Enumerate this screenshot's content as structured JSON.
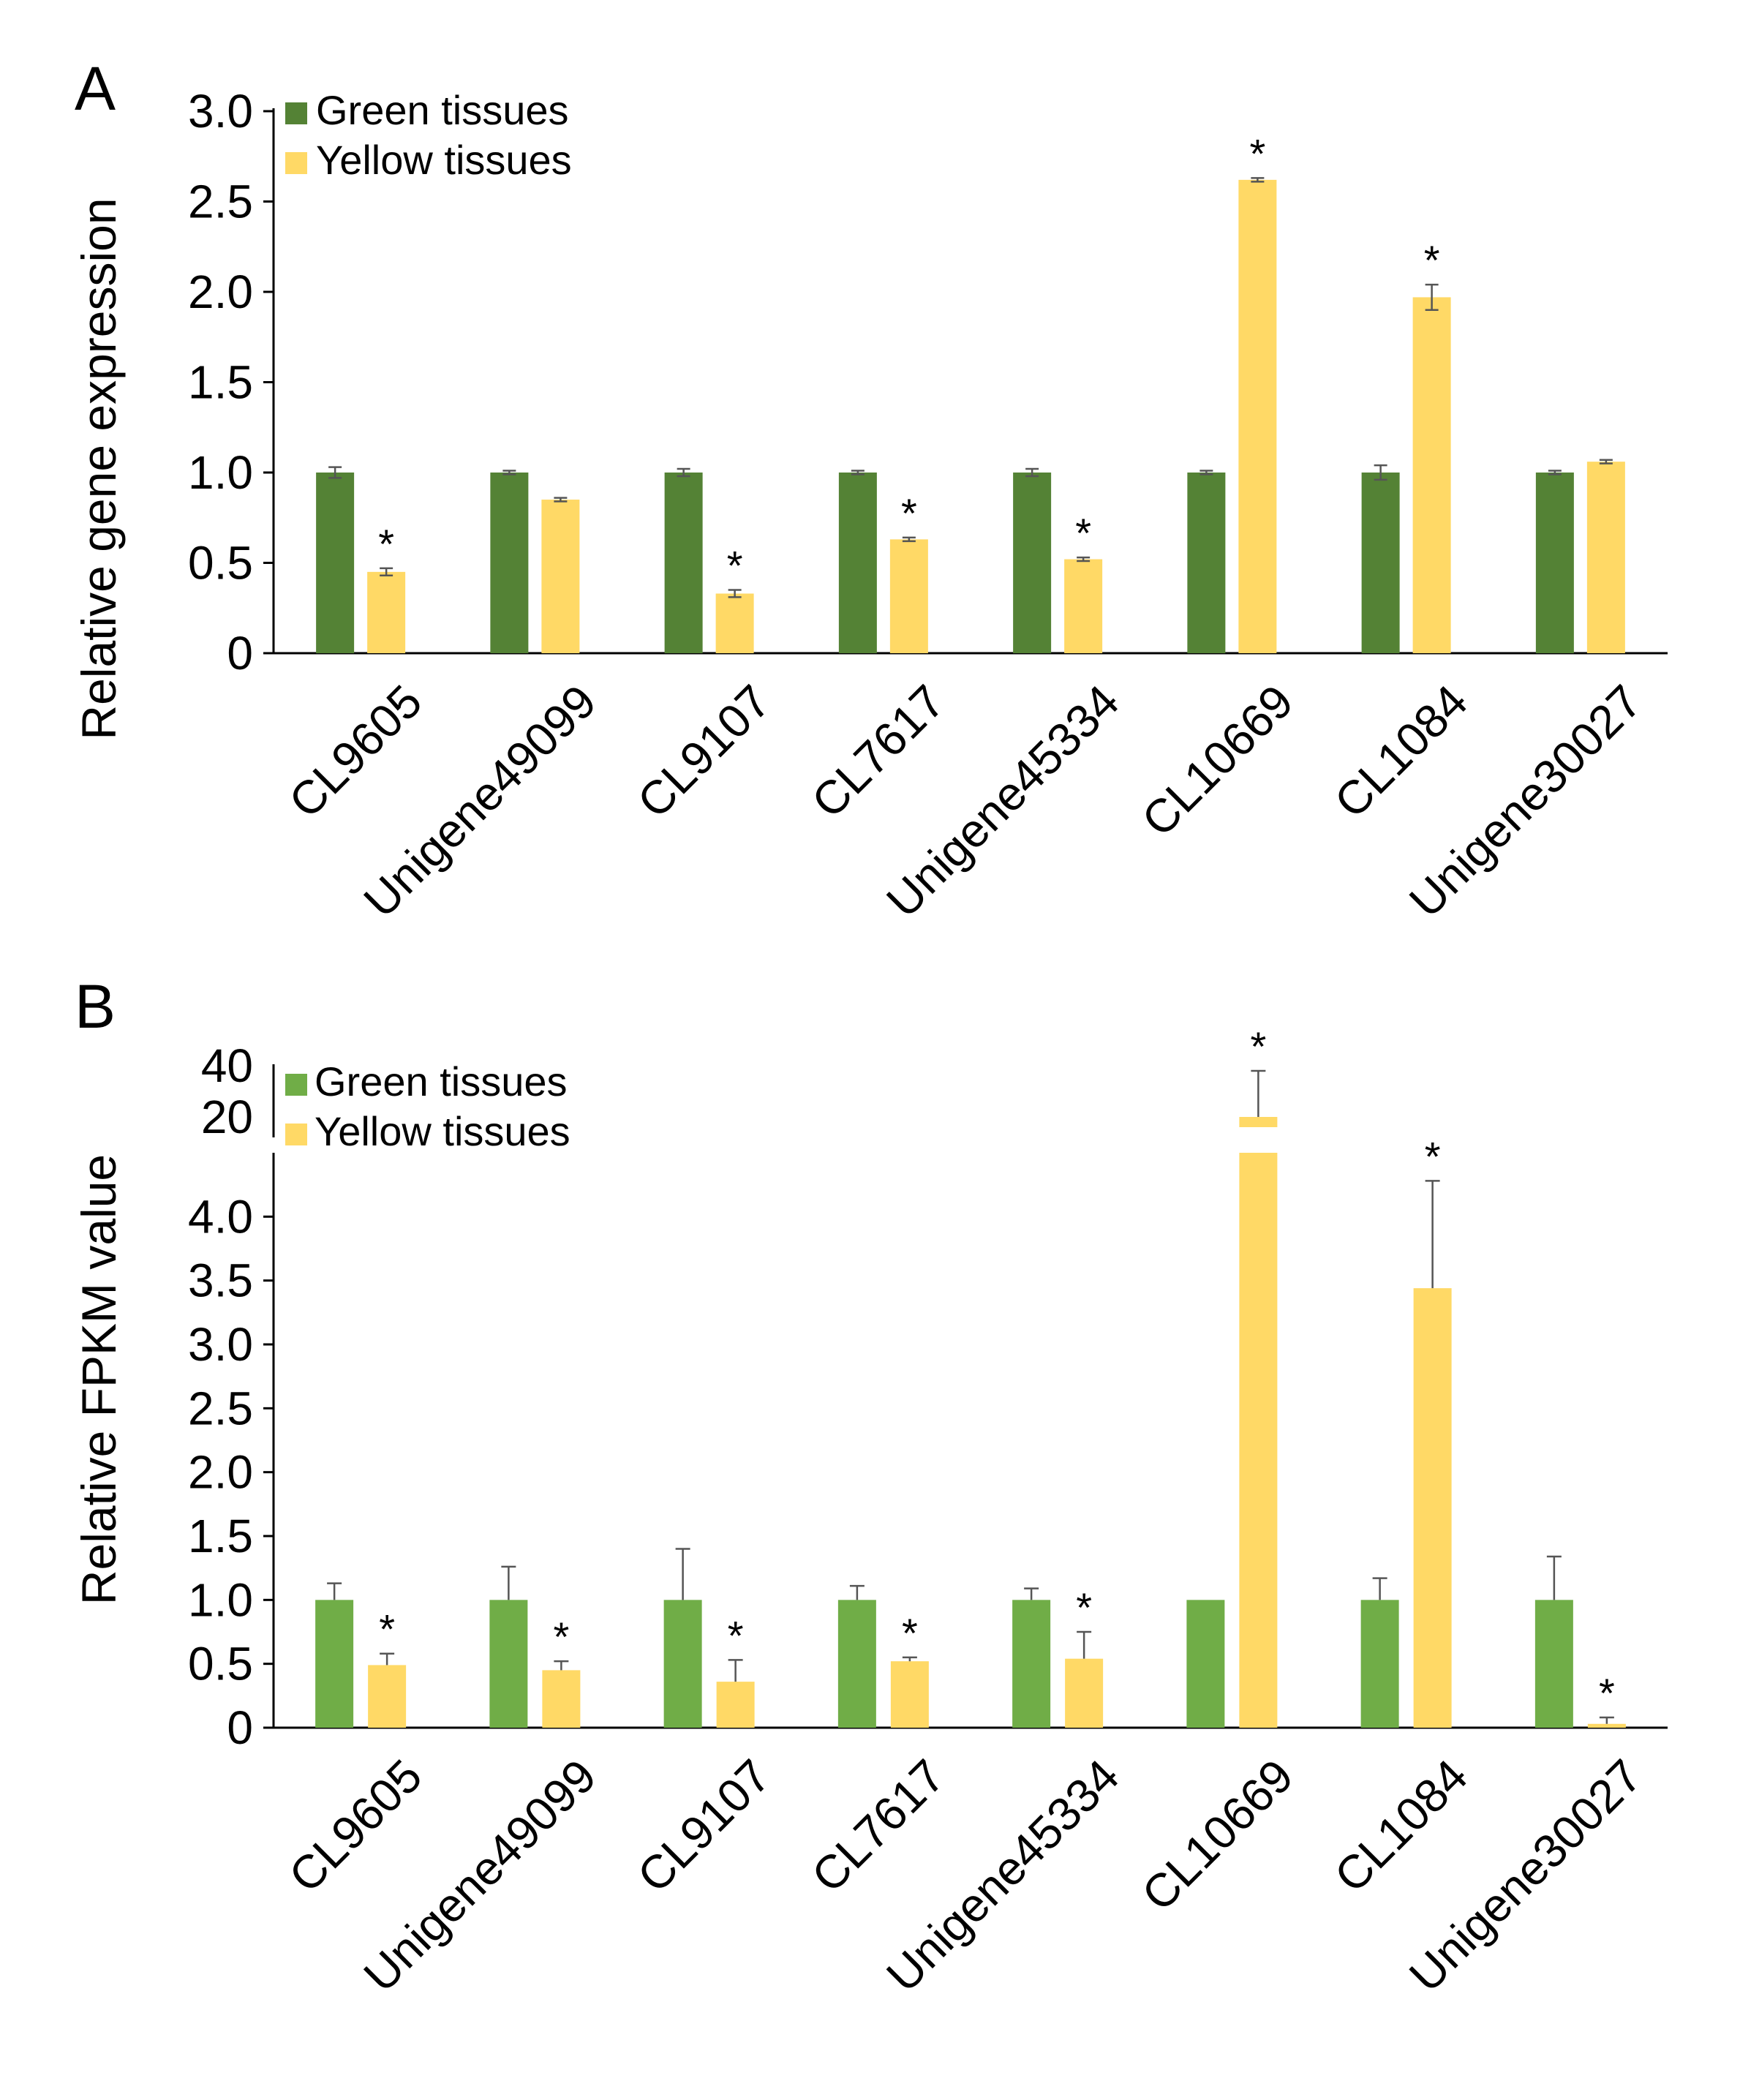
{
  "chart_data": [
    {
      "id": "A",
      "type": "bar",
      "panel_label": "A",
      "title": "",
      "xlabel": "",
      "ylabel": "Relative gene expression",
      "ylim": [
        0,
        3.0
      ],
      "yticks": [
        0,
        0.5,
        1.0,
        1.5,
        2.0,
        2.5,
        3.0
      ],
      "ytick_labels": [
        "0",
        "0.5",
        "1.0",
        "1.5",
        "2.0",
        "2.5",
        "3.0"
      ],
      "grid": false,
      "legend_position": "top-left",
      "categories": [
        "CL9605",
        "Unigene49099",
        "CL9107",
        "CL7617",
        "Unigene45334",
        "CL10669",
        "CL1084",
        "Unigene30027"
      ],
      "series": [
        {
          "name": "Green tissues",
          "color": "#548235",
          "values": [
            1.0,
            1.0,
            1.0,
            1.0,
            1.0,
            1.0,
            1.0,
            1.0
          ],
          "errors": [
            0.03,
            0.01,
            0.02,
            0.01,
            0.02,
            0.01,
            0.04,
            0.01
          ],
          "significant": [
            false,
            false,
            false,
            false,
            false,
            false,
            false,
            false
          ]
        },
        {
          "name": "Yellow tissues",
          "color": "#FFD966",
          "values": [
            0.45,
            0.85,
            0.33,
            0.63,
            0.52,
            2.62,
            1.97,
            1.06
          ],
          "errors": [
            0.02,
            0.01,
            0.02,
            0.01,
            0.01,
            0.01,
            0.07,
            0.01
          ],
          "significant": [
            true,
            false,
            true,
            true,
            true,
            true,
            true,
            false
          ]
        }
      ],
      "annotation_symbol": "*"
    },
    {
      "id": "B",
      "type": "bar",
      "panel_label": "B",
      "title": "",
      "xlabel": "",
      "ylabel": "Relative FPKM value",
      "ylim": [
        0,
        4.5
      ],
      "upper_ylim": [
        12,
        40
      ],
      "yticks": [
        0,
        0.5,
        1.0,
        1.5,
        2.0,
        2.5,
        3.0,
        3.5,
        4.0
      ],
      "ytick_labels": [
        "0",
        "0.5",
        "1.0",
        "1.5",
        "2.0",
        "2.5",
        "3.0",
        "3.5",
        "4.0"
      ],
      "upper_yticks": [
        20,
        40
      ],
      "upper_ytick_labels": [
        "20",
        "40"
      ],
      "axis_break": true,
      "grid": false,
      "legend_position": "top-left",
      "categories": [
        "CL9605",
        "Unigene49099",
        "CL9107",
        "CL7617",
        "Unigene45334",
        "CL10669",
        "CL1084",
        "Unigene30027"
      ],
      "series": [
        {
          "name": "Green tissues",
          "color": "#70AD47",
          "values": [
            1.0,
            1.0,
            1.0,
            1.0,
            1.0,
            1.0,
            1.0,
            1.0
          ],
          "errors": [
            0.13,
            0.26,
            0.4,
            0.11,
            0.09,
            0.0,
            0.17,
            0.34
          ],
          "significant": [
            false,
            false,
            false,
            false,
            false,
            false,
            false,
            false
          ]
        },
        {
          "name": "Yellow tissues",
          "color": "#FFD966",
          "values": [
            0.49,
            0.45,
            0.36,
            0.52,
            0.54,
            20.0,
            3.44,
            0.03
          ],
          "errors": [
            0.09,
            0.07,
            0.17,
            0.03,
            0.21,
            18.0,
            0.84,
            0.05
          ],
          "significant": [
            true,
            true,
            true,
            true,
            true,
            true,
            true,
            true
          ]
        }
      ],
      "annotation_symbol": "*"
    }
  ]
}
